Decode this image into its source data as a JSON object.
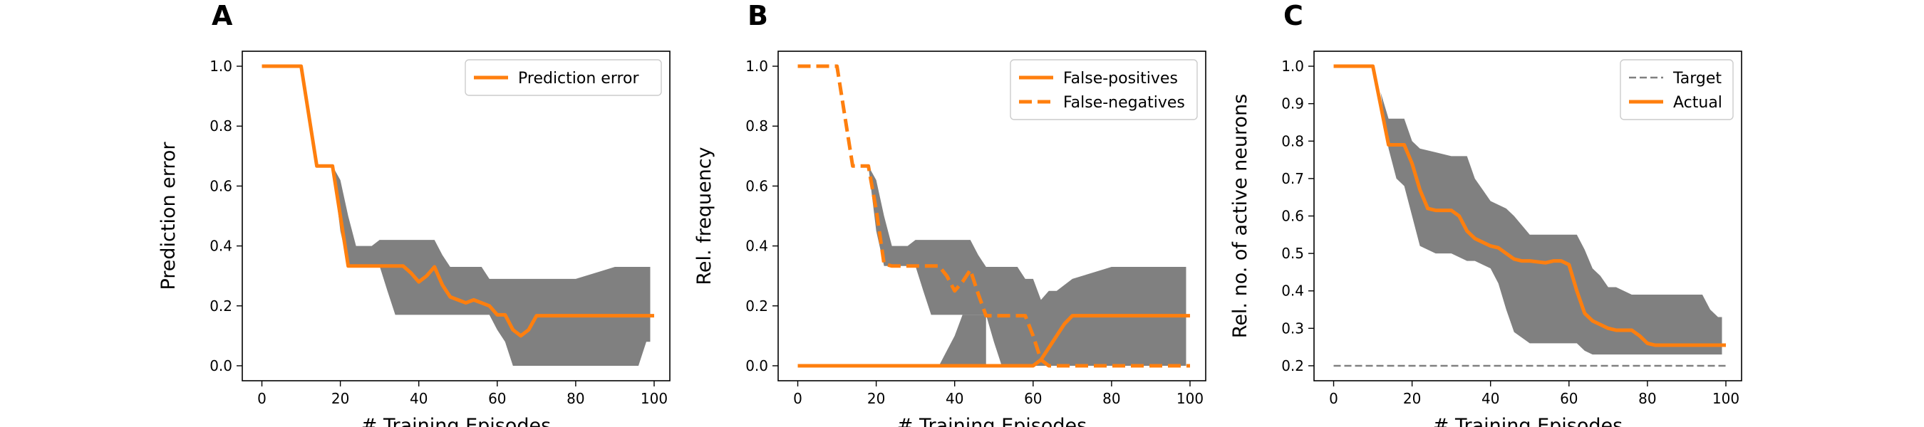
{
  "chart_data": [
    {
      "type": "line",
      "panel_label": "A",
      "xlabel": "# Training Episodes",
      "ylabel": "Prediction error",
      "xlim": [
        -5,
        104
      ],
      "ylim": [
        -0.05,
        1.05
      ],
      "xticks": [
        0,
        20,
        40,
        60,
        80,
        100
      ],
      "yticks": [
        0.0,
        0.2,
        0.4,
        0.6,
        0.8,
        1.0
      ],
      "ytick_labels": [
        "0.0",
        "0.2",
        "0.4",
        "0.6",
        "0.8",
        "1.0"
      ],
      "legend_position": "top-right",
      "series": [
        {
          "name": "Prediction error",
          "color": "#ff7f0e",
          "style": "solid",
          "x": [
            0,
            10,
            14,
            18,
            22,
            26,
            30,
            36,
            38,
            40,
            42,
            44,
            46,
            48,
            50,
            52,
            54,
            56,
            58,
            60,
            62,
            64,
            66,
            68,
            70,
            100
          ],
          "y": [
            1.0,
            1.0,
            0.667,
            0.667,
            0.333,
            0.333,
            0.333,
            0.333,
            0.31,
            0.28,
            0.3,
            0.33,
            0.27,
            0.23,
            0.22,
            0.21,
            0.22,
            0.21,
            0.2,
            0.17,
            0.17,
            0.12,
            0.1,
            0.12,
            0.167,
            0.167
          ]
        }
      ],
      "bands": [
        {
          "color": "#808080",
          "x": [
            18,
            20,
            22,
            24,
            26,
            28,
            30,
            32,
            34,
            36,
            40,
            42,
            44,
            46,
            48,
            50,
            54,
            56,
            58,
            60,
            62,
            64,
            66,
            70,
            80,
            90,
            94,
            96,
            98,
            99
          ],
          "upper": [
            0.667,
            0.62,
            0.5,
            0.4,
            0.4,
            0.4,
            0.42,
            0.42,
            0.42,
            0.42,
            0.42,
            0.42,
            0.42,
            0.37,
            0.33,
            0.33,
            0.33,
            0.33,
            0.29,
            0.29,
            0.29,
            0.29,
            0.29,
            0.29,
            0.29,
            0.33,
            0.33,
            0.33,
            0.33,
            0.33
          ],
          "lower": [
            0.667,
            0.45,
            0.333,
            0.333,
            0.333,
            0.333,
            0.333,
            0.25,
            0.17,
            0.17,
            0.17,
            0.17,
            0.17,
            0.17,
            0.17,
            0.17,
            0.17,
            0.17,
            0.17,
            0.12,
            0.08,
            0.0,
            0.0,
            0.0,
            0.0,
            0.0,
            0.0,
            0.0,
            0.08,
            0.08
          ]
        }
      ]
    },
    {
      "type": "line",
      "panel_label": "B",
      "xlabel": "# Training Episodes",
      "ylabel": "Rel. frequency",
      "xlim": [
        -5,
        104
      ],
      "ylim": [
        -0.05,
        1.05
      ],
      "xticks": [
        0,
        20,
        40,
        60,
        80,
        100
      ],
      "yticks": [
        0.0,
        0.2,
        0.4,
        0.6,
        0.8,
        1.0
      ],
      "ytick_labels": [
        "0.0",
        "0.2",
        "0.4",
        "0.6",
        "0.8",
        "1.0"
      ],
      "legend_position": "top-right",
      "series": [
        {
          "name": "False-positives",
          "color": "#ff7f0e",
          "style": "solid",
          "x": [
            0,
            60,
            62,
            64,
            66,
            68,
            70,
            100
          ],
          "y": [
            0.0,
            0.0,
            0.02,
            0.06,
            0.1,
            0.14,
            0.167,
            0.167
          ]
        },
        {
          "name": "False-negatives",
          "color": "#ff7f0e",
          "style": "dashed",
          "x": [
            0,
            10,
            14,
            18,
            20,
            22,
            24,
            26,
            30,
            36,
            38,
            40,
            42,
            44,
            46,
            48,
            50,
            56,
            58,
            60,
            62,
            64,
            68,
            100
          ],
          "y": [
            1.0,
            1.0,
            0.667,
            0.667,
            0.52,
            0.34,
            0.333,
            0.333,
            0.333,
            0.333,
            0.3,
            0.25,
            0.28,
            0.32,
            0.24,
            0.167,
            0.167,
            0.167,
            0.167,
            0.1,
            0.02,
            0.0,
            0.0,
            0.0
          ]
        }
      ],
      "bands": [
        {
          "color": "#808080",
          "x": [
            18,
            20,
            22,
            24,
            26,
            28,
            30,
            32,
            34,
            36,
            40,
            42,
            44,
            46,
            48,
            50,
            52,
            56,
            58,
            60,
            62,
            64,
            66,
            70,
            80,
            90,
            94,
            96,
            98,
            99
          ],
          "upper": [
            0.667,
            0.62,
            0.5,
            0.4,
            0.4,
            0.4,
            0.42,
            0.42,
            0.42,
            0.42,
            0.42,
            0.42,
            0.42,
            0.37,
            0.33,
            0.33,
            0.33,
            0.33,
            0.29,
            0.29,
            0.22,
            0.25,
            0.25,
            0.29,
            0.33,
            0.33,
            0.33,
            0.33,
            0.33,
            0.33
          ],
          "lower": [
            0.667,
            0.45,
            0.333,
            0.333,
            0.333,
            0.333,
            0.333,
            0.25,
            0.17,
            0.17,
            0.17,
            0.17,
            0.17,
            0.17,
            0.17,
            0.08,
            0.0,
            0.0,
            0.0,
            0.0,
            0.0,
            0.0,
            0.0,
            0.0,
            0.0,
            0.0,
            0.0,
            0.0,
            0.0,
            0.0
          ]
        },
        {
          "color": "#808080",
          "x": [
            36,
            38,
            40,
            42,
            44,
            48
          ],
          "upper": [
            0.0,
            0.05,
            0.1,
            0.17,
            0.17,
            0.17
          ],
          "lower": [
            0.0,
            0.0,
            0.0,
            0.0,
            0.0,
            0.0
          ]
        }
      ]
    },
    {
      "type": "line",
      "panel_label": "C",
      "xlabel": "# Training Episodes",
      "ylabel": "Rel. no. of active neurons",
      "xlim": [
        -5,
        104
      ],
      "ylim": [
        0.16,
        1.04
      ],
      "xticks": [
        0,
        20,
        40,
        60,
        80,
        100
      ],
      "yticks": [
        0.2,
        0.3,
        0.4,
        0.5,
        0.6,
        0.7,
        0.8,
        0.9,
        1.0
      ],
      "ytick_labels": [
        "0.2",
        "0.3",
        "0.4",
        "0.5",
        "0.6",
        "0.7",
        "0.8",
        "0.9",
        "1.0"
      ],
      "legend_position": "top-right",
      "series": [
        {
          "name": "Target",
          "color": "#808080",
          "style": "dashed",
          "x": [
            0,
            100
          ],
          "y": [
            0.2,
            0.2
          ]
        },
        {
          "name": "Actual",
          "color": "#ff7f0e",
          "style": "solid",
          "x": [
            0,
            10,
            14,
            18,
            20,
            22,
            24,
            26,
            30,
            32,
            34,
            36,
            38,
            40,
            42,
            44,
            46,
            48,
            50,
            54,
            56,
            58,
            60,
            62,
            64,
            66,
            68,
            70,
            72,
            76,
            78,
            80,
            82,
            100
          ],
          "y": [
            1.0,
            1.0,
            0.79,
            0.79,
            0.74,
            0.67,
            0.62,
            0.615,
            0.615,
            0.6,
            0.56,
            0.54,
            0.53,
            0.52,
            0.515,
            0.5,
            0.485,
            0.48,
            0.48,
            0.475,
            0.48,
            0.48,
            0.47,
            0.4,
            0.34,
            0.32,
            0.31,
            0.3,
            0.295,
            0.295,
            0.28,
            0.26,
            0.255,
            0.255
          ]
        }
      ],
      "bands": [
        {
          "color": "#808080",
          "x": [
            12,
            14,
            16,
            18,
            20,
            22,
            26,
            30,
            34,
            36,
            38,
            40,
            42,
            44,
            46,
            50,
            54,
            58,
            60,
            62,
            64,
            66,
            68,
            70,
            72,
            76,
            80,
            82,
            86,
            94,
            96,
            98,
            99
          ],
          "upper": [
            0.93,
            0.86,
            0.86,
            0.86,
            0.8,
            0.78,
            0.77,
            0.76,
            0.76,
            0.7,
            0.67,
            0.64,
            0.63,
            0.62,
            0.6,
            0.55,
            0.55,
            0.55,
            0.55,
            0.55,
            0.51,
            0.46,
            0.44,
            0.41,
            0.41,
            0.39,
            0.39,
            0.39,
            0.39,
            0.39,
            0.35,
            0.33,
            0.33
          ],
          "lower": [
            0.93,
            0.78,
            0.7,
            0.68,
            0.6,
            0.52,
            0.5,
            0.5,
            0.48,
            0.48,
            0.47,
            0.46,
            0.42,
            0.35,
            0.29,
            0.26,
            0.26,
            0.26,
            0.26,
            0.26,
            0.24,
            0.23,
            0.23,
            0.23,
            0.23,
            0.23,
            0.23,
            0.23,
            0.23,
            0.23,
            0.23,
            0.23,
            0.23
          ]
        }
      ]
    }
  ]
}
